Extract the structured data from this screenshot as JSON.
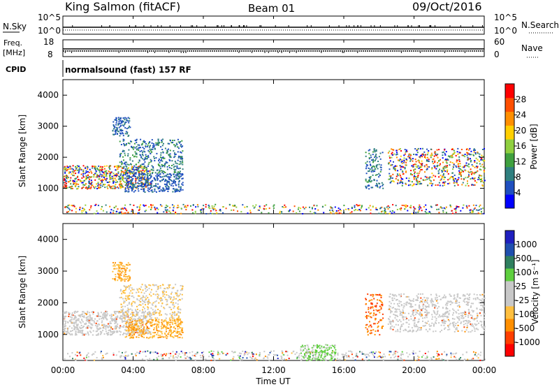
{
  "header": {
    "station": "King Salmon (fitACF)",
    "beam": "Beam 01",
    "date": "09/Oct/2016"
  },
  "strips": {
    "nsky_label": "N.Sky",
    "nsky_ticks": [
      "10^5",
      "10^0"
    ],
    "nsearch_label": "N.Search",
    "nsearch_ticks": [
      "10^5",
      "10^0"
    ],
    "freq_label_1": "Freq.",
    "freq_label_2": "[MHz]",
    "freq_ticks": [
      "18",
      "8"
    ],
    "nave_label": "Nave",
    "nave_ticks": [
      "60",
      "0"
    ],
    "cpid_label": "CPID",
    "cpid_text": "normalsound (fast) 157 RF"
  },
  "colors": {
    "power_scale": [
      "#0000ff",
      "#1f4fbf",
      "#2f7f7f",
      "#3fa03f",
      "#8fcf3f",
      "#ffcf00",
      "#ff8f00",
      "#ff4f00",
      "#ff0000"
    ],
    "velocity_scale": [
      "#ff0000",
      "#ff3f00",
      "#ff8f00",
      "#ffbf3f",
      "#c8c8c8",
      "#c8c8c8",
      "#5fcf3f",
      "#2f7f5f",
      "#1f4faf",
      "#1f1fbf"
    ],
    "ground_scatter": "#c8c8c8"
  },
  "chart_data": [
    {
      "type": "heatmap",
      "name": "power",
      "xlabel": "",
      "ylabel": "Slant Range [km]",
      "x_ticks": [
        "00:00",
        "04:00",
        "08:00",
        "12:00",
        "16:00",
        "20:00",
        "00:00"
      ],
      "y_ticks": [
        "1000",
        "2000",
        "3000",
        "4000"
      ],
      "xlim_hours": [
        0,
        24
      ],
      "ylim_km": [
        180,
        4500
      ],
      "colorbar": {
        "label": "Power [dB]",
        "ticks": [
          "4",
          "8",
          "12",
          "16",
          "20",
          "24",
          "28"
        ],
        "range": [
          0,
          30
        ]
      },
      "echo_regions": [
        {
          "t_start": 0.0,
          "t_end": 5.0,
          "range_start": 1000,
          "range_end": 1750,
          "level": "mixed 4-28"
        },
        {
          "t_start": 3.2,
          "t_end": 6.8,
          "range_start": 1500,
          "range_end": 2600,
          "level": "4-12"
        },
        {
          "t_start": 2.8,
          "t_end": 3.8,
          "range_start": 2700,
          "range_end": 3300,
          "level": "4-8"
        },
        {
          "t_start": 3.5,
          "t_end": 6.8,
          "range_start": 900,
          "range_end": 1500,
          "level": "4-8"
        },
        {
          "t_start": 0.0,
          "t_end": 24.0,
          "range_start": 200,
          "range_end": 500,
          "level": "scattered 4-28"
        },
        {
          "t_start": 17.2,
          "t_end": 18.2,
          "range_start": 1000,
          "range_end": 2300,
          "level": "4-12"
        },
        {
          "t_start": 18.5,
          "t_end": 24.0,
          "range_start": 1100,
          "range_end": 2300,
          "level": "mixed 4-28"
        }
      ]
    },
    {
      "type": "heatmap",
      "name": "velocity",
      "xlabel": "Time UT",
      "ylabel": "Slant Range [km]",
      "x_ticks": [
        "00:00",
        "04:00",
        "08:00",
        "12:00",
        "16:00",
        "20:00",
        "00:00"
      ],
      "y_ticks": [
        "1000",
        "2000",
        "3000",
        "4000"
      ],
      "xlim_hours": [
        0,
        24
      ],
      "ylim_km": [
        180,
        4500
      ],
      "colorbar": {
        "label": "Velocity [m s⁻¹]",
        "ticks": [
          "1000",
          "500",
          "100",
          "25",
          "-25",
          "-100",
          "-500",
          "-1000"
        ]
      },
      "echo_regions": [
        {
          "t_start": 0.0,
          "t_end": 5.0,
          "range_start": 1000,
          "range_end": 1750,
          "level": "ground scatter"
        },
        {
          "t_start": 3.2,
          "t_end": 6.8,
          "range_start": 1500,
          "range_end": 2600,
          "level": "-25 to -100"
        },
        {
          "t_start": 2.8,
          "t_end": 3.8,
          "range_start": 2700,
          "range_end": 3300,
          "level": "-100"
        },
        {
          "t_start": 3.5,
          "t_end": 6.8,
          "range_start": 900,
          "range_end": 1500,
          "level": "-100"
        },
        {
          "t_start": 0.0,
          "t_end": 24.0,
          "range_start": 200,
          "range_end": 500,
          "level": "mixed"
        },
        {
          "t_start": 13.5,
          "t_end": 15.5,
          "range_start": 200,
          "range_end": 700,
          "level": "100"
        },
        {
          "t_start": 17.2,
          "t_end": 18.2,
          "range_start": 1000,
          "range_end": 2300,
          "level": "-100 to -500"
        },
        {
          "t_start": 18.5,
          "t_end": 24.0,
          "range_start": 1100,
          "range_end": 2300,
          "level": "ground scatter"
        }
      ]
    }
  ]
}
